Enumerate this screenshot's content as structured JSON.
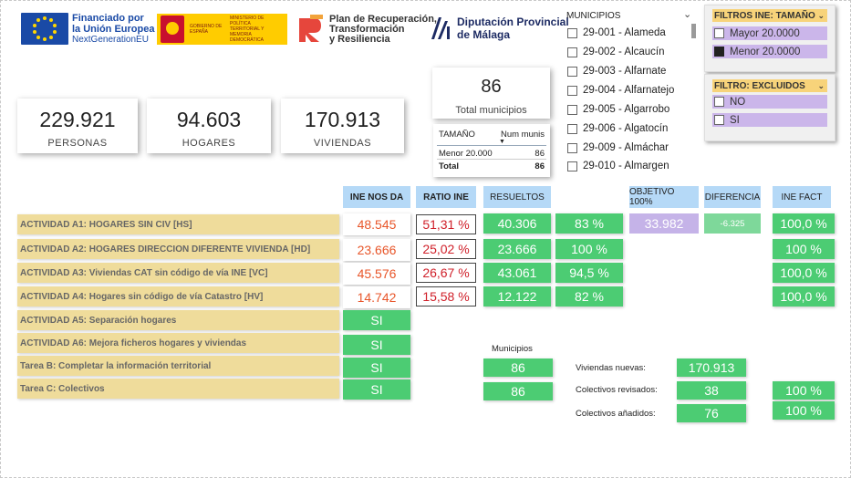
{
  "logos": {
    "eu": {
      "line1": "Financiado por",
      "line2": "la Unión Europea",
      "line3": "NextGenerationEU"
    },
    "gobierno": {
      "left": "GOBIERNO DE ESPAÑA",
      "right": "MINISTERIO DE POLÍTICA TERRITORIAL Y MEMORIA DEMOCRÁTICA"
    },
    "prtr": {
      "line1": "Plan de Recuperación,",
      "line2": "Transformación",
      "line3": "y Resiliencia"
    },
    "diputacion": {
      "line1": "Diputación Provincial",
      "line2": "de Málaga"
    }
  },
  "municipios_slicer": {
    "title": "MUNICIPIOS",
    "items": [
      "29-001 - Alameda",
      "29-002 - Alcaucín",
      "29-003 - Alfarnate",
      "29-004 - Alfarnatejo",
      "29-005 - Algarrobo",
      "29-006 - Algatocín",
      "29-009 - Almáchar",
      "29-010 - Almargen"
    ]
  },
  "filtro_tamano": {
    "title": "FILTROS INE: TAMAÑO",
    "options": [
      {
        "label": "Mayor 20.0000",
        "checked": false
      },
      {
        "label": "Menor 20.0000",
        "checked": true
      }
    ]
  },
  "filtro_excluidos": {
    "title": "FILTRO: EXCLUIDOS",
    "options": [
      {
        "label": "NO",
        "checked": false
      },
      {
        "label": "SI",
        "checked": false
      }
    ]
  },
  "kpis": [
    {
      "value": "229.921",
      "label": "PERSONAS"
    },
    {
      "value": "94.603",
      "label": "HOGARES"
    },
    {
      "value": "170.913",
      "label": "VIVIENDAS"
    }
  ],
  "total_municipios": {
    "value": "86",
    "label": "Total municipios"
  },
  "tamano_table": {
    "col1": "TAMAÑO",
    "col2": "Num munis",
    "rows": [
      {
        "tamano": "Menor 20.000",
        "num": "86"
      }
    ],
    "total_label": "Total",
    "total_value": "86"
  },
  "headers": {
    "ine_nos_da": "INE NOS DA",
    "ratio_ine": "RATIO INE",
    "resueltos": "RESUELTOS",
    "objetivo": "OBJETIVO 100%",
    "diferencia": "DIFERENCIA",
    "ine_fact": "INE FACT"
  },
  "actividades": [
    {
      "label": "ACTIVIDAD A1: HOGARES SIN CIV [HS]",
      "ine": "48.545",
      "ratio": "51,31 %",
      "resueltos": "40.306",
      "pct": "83 %",
      "objetivo": "33.982",
      "diferencia": "-6.325",
      "ine_fact": "100,0 %"
    },
    {
      "label": "ACTIVIDAD A2: HOGARES DIRECCION DIFERENTE VIVIENDA [HD]",
      "ine": "23.666",
      "ratio": "25,02 %",
      "resueltos": "23.666",
      "pct": "100 %",
      "ine_fact": "100 %"
    },
    {
      "label": "ACTIVIDAD A3: Viviendas CAT sin código de vía INE [VC]",
      "ine": "45.576",
      "ratio": "26,67 %",
      "resueltos": "43.061",
      "pct": "94,5 %",
      "ine_fact": "100,0 %"
    },
    {
      "label": "ACTIVIDAD A4: Hogares sin código de vía Catastro [HV]",
      "ine": "14.742",
      "ratio": "15,58 %",
      "resueltos": "12.122",
      "pct": "82 %",
      "ine_fact": "100,0 %"
    },
    {
      "label": "ACTIVIDAD A5: Separación hogares",
      "si": "SI"
    },
    {
      "label": "ACTIVIDAD A6: Mejora ficheros hogares y viviendas",
      "si": "SI"
    },
    {
      "label": "Tarea B: Completar la información territorial",
      "si": "SI"
    },
    {
      "label": "Tarea C: Colectivos",
      "si": "SI"
    }
  ],
  "municipios_block": {
    "title": "Municipios",
    "values": [
      "86",
      "86"
    ]
  },
  "extras": [
    {
      "label": "Viviendas nuevas:",
      "value": "170.913"
    },
    {
      "label": "Colectivos revisados:",
      "value": "38",
      "pct": "100 %"
    },
    {
      "label": "Colectivos añadidos:",
      "value": "76",
      "pct": "100 %"
    }
  ],
  "colors": {
    "green": "#4ccc73",
    "header_blue": "#b5d9f7",
    "activity_yellow": "#efdc9b",
    "filter_purple": "#cbb6ea",
    "ine_orange": "#e8562a",
    "ratio_red": "#d0202a"
  }
}
